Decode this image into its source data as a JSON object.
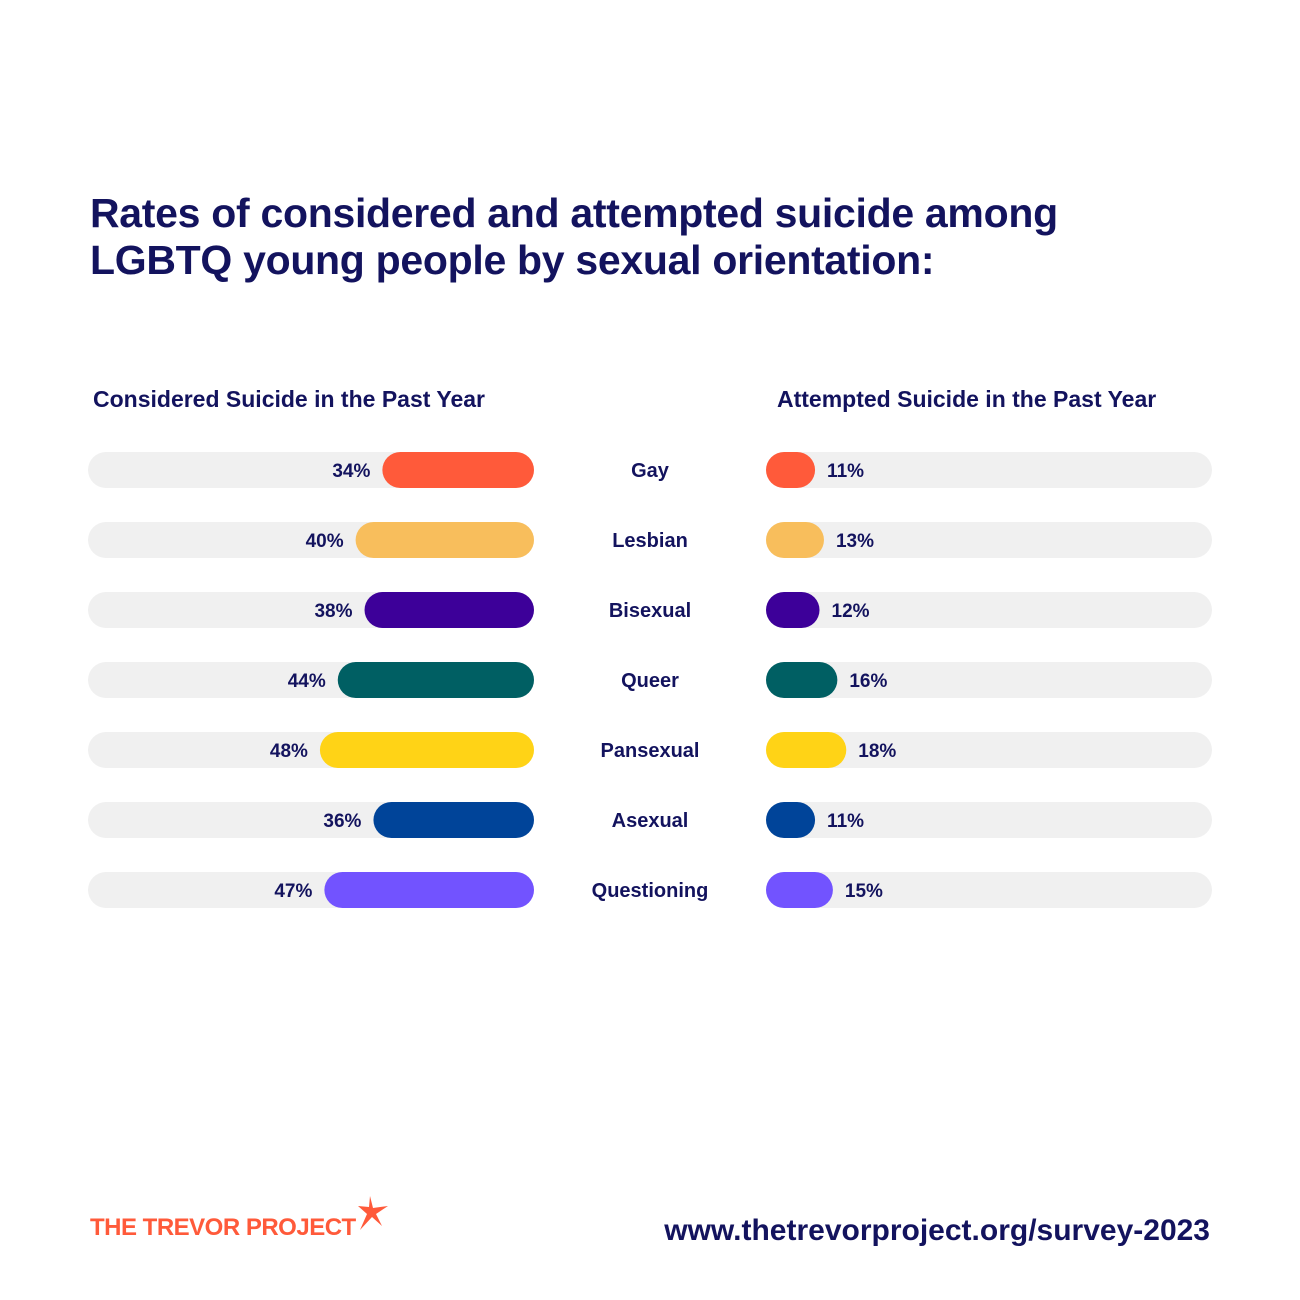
{
  "title": "Rates of considered and attempted suicide among LGBTQ young people by sexual orientation:",
  "chart_data": {
    "type": "bar",
    "categories": [
      "Gay",
      "Lesbian",
      "Bisexual",
      "Queer",
      "Pansexual",
      "Asexual",
      "Questioning"
    ],
    "colors": [
      "#ff5a3a",
      "#f8be5c",
      "#3d0099",
      "#005f63",
      "#ffd316",
      "#004499",
      "#7253ff"
    ],
    "track_color": "#f0f0f0",
    "series": [
      {
        "name": "Considered Suicide in the Past Year",
        "values": [
          34,
          40,
          38,
          44,
          48,
          36,
          47
        ],
        "labels": [
          "34%",
          "40%",
          "38%",
          "44%",
          "48%",
          "36%",
          "47%"
        ]
      },
      {
        "name": "Attempted Suicide in the Past Year",
        "values": [
          11,
          13,
          12,
          16,
          18,
          11,
          15
        ],
        "labels": [
          "11%",
          "13%",
          "12%",
          "16%",
          "18%",
          "11%",
          "15%"
        ]
      }
    ],
    "xlim": [
      0,
      100
    ],
    "layout": "mirrored horizontal bars"
  },
  "footer": {
    "logo": "THE TREVOR PROJECT",
    "url": "www.thetrevorproject.org/survey-2023"
  }
}
